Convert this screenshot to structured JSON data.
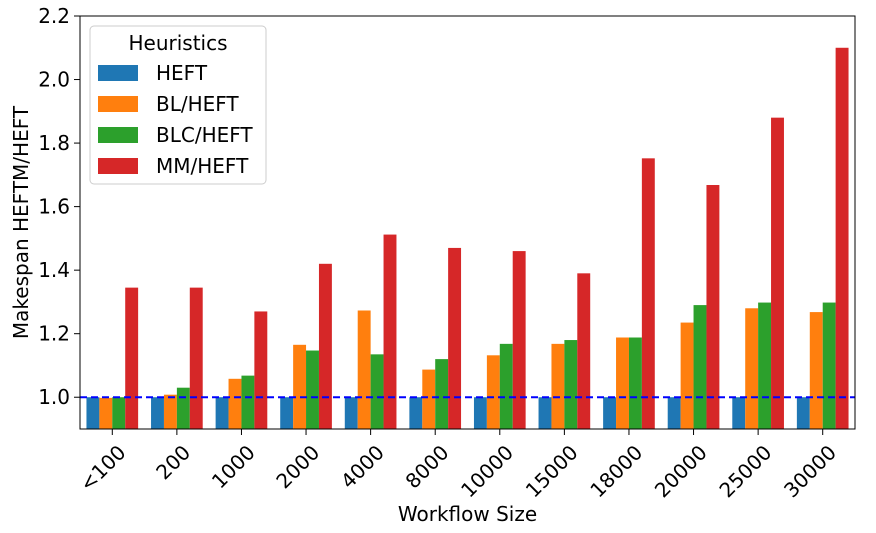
{
  "chart_data": {
    "type": "bar",
    "title": "",
    "xlabel": "Workflow Size",
    "ylabel": "Makespan HEFTM/HEFT",
    "ylim": [
      0.9,
      2.2
    ],
    "yticks": [
      "1.0",
      "1.2",
      "1.4",
      "1.6",
      "1.8",
      "2.0",
      "2.2"
    ],
    "categories": [
      "<100",
      "200",
      "1000",
      "2000",
      "4000",
      "8000",
      "10000",
      "15000",
      "18000",
      "20000",
      "25000",
      "30000"
    ],
    "series": [
      {
        "name": "HEFT",
        "color": "#1f77b4",
        "values": [
          1.0,
          1.0,
          1.0,
          1.0,
          1.0,
          1.0,
          1.0,
          1.0,
          1.0,
          1.0,
          1.0,
          1.0
        ]
      },
      {
        "name": "BL/HEFT",
        "color": "#ff7f0e",
        "values": [
          0.998,
          1.008,
          1.058,
          1.165,
          1.273,
          1.087,
          1.132,
          1.168,
          1.188,
          1.235,
          1.28,
          1.268
        ]
      },
      {
        "name": "BLC/HEFT",
        "color": "#2ca02c",
        "values": [
          1.0,
          1.03,
          1.068,
          1.147,
          1.135,
          1.12,
          1.168,
          1.18,
          1.188,
          1.29,
          1.298,
          1.298
        ]
      },
      {
        "name": "MM/HEFT",
        "color": "#d62728",
        "values": [
          1.345,
          1.345,
          1.27,
          1.42,
          1.512,
          1.47,
          1.46,
          1.39,
          1.752,
          1.668,
          1.88,
          2.1
        ]
      }
    ],
    "reference_line": {
      "y": 1.0,
      "color": "#0000ff",
      "style": "dashed"
    },
    "legend": {
      "title": "Heuristics",
      "placement": "top-left"
    },
    "grid": false
  }
}
